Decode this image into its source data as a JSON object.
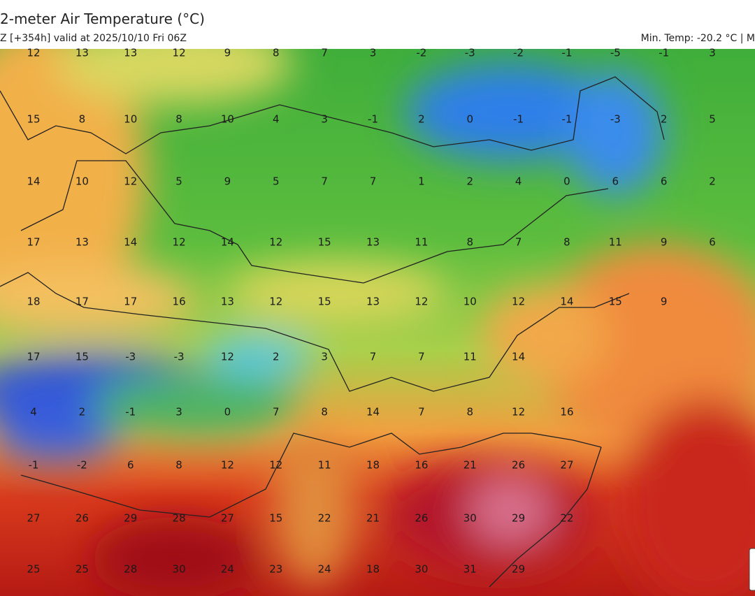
{
  "header": {
    "title": "2-meter Air Temperature (°C)",
    "subtitle": "Z [+354h] valid at 2025/10/10 Fri 06Z",
    "min_temp": "Min. Temp: -20.2 °C | M"
  },
  "map": {
    "rows": [
      [
        12,
        13,
        13,
        12,
        9,
        8,
        7,
        3,
        -2,
        -3,
        -2,
        -1,
        -5,
        -1,
        3
      ],
      [
        15,
        8,
        10,
        8,
        10,
        4,
        3,
        -1,
        2,
        0,
        -1,
        -1,
        -3,
        2,
        5
      ],
      [
        14,
        10,
        12,
        5,
        9,
        5,
        7,
        7,
        1,
        2,
        4,
        0,
        6,
        6,
        2
      ],
      [
        17,
        13,
        14,
        12,
        14,
        12,
        15,
        13,
        11,
        8,
        7,
        8,
        11,
        9,
        6
      ],
      [
        18,
        17,
        17,
        16,
        13,
        12,
        15,
        13,
        12,
        10,
        12,
        14,
        15,
        9
      ],
      [
        17,
        15,
        -3,
        -3,
        12,
        2,
        3,
        7,
        7,
        11,
        14
      ],
      [
        4,
        2,
        -1,
        3,
        0,
        7,
        8,
        14,
        7,
        8,
        12,
        16
      ],
      [
        -1,
        -2,
        6,
        8,
        12,
        12,
        11,
        18,
        16,
        21,
        26,
        27
      ],
      [
        27,
        26,
        29,
        28,
        27,
        15,
        22,
        21,
        26,
        30,
        29,
        22
      ],
      [
        25,
        25,
        28,
        30,
        24,
        23,
        24,
        18,
        30,
        31,
        29
      ]
    ]
  }
}
